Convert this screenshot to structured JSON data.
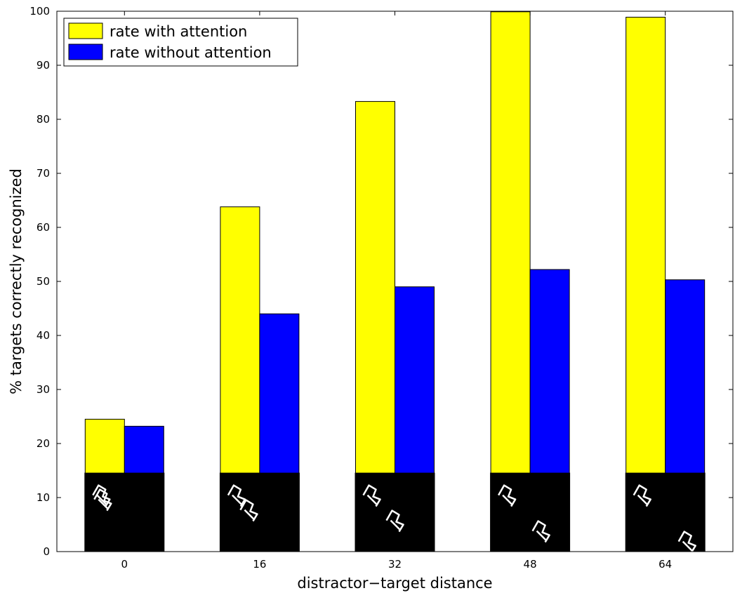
{
  "chart_data": {
    "type": "bar",
    "categories": [
      "0",
      "16",
      "32",
      "48",
      "64"
    ],
    "series": [
      {
        "name": "rate with attention",
        "color": "#ffff00",
        "values": [
          24.5,
          63.8,
          83.3,
          99.9,
          98.9
        ]
      },
      {
        "name": "rate without attention",
        "color": "#0000ff",
        "values": [
          23.2,
          44.0,
          49.0,
          52.2,
          50.3
        ]
      }
    ],
    "xlabel": "distractor−target distance",
    "ylabel": "% targets correctly recognized",
    "ylim": [
      0,
      100
    ],
    "yticks": [
      0,
      10,
      20,
      30,
      40,
      50,
      60,
      70,
      80,
      90,
      100
    ],
    "grid": false,
    "legend_position": "top-left",
    "inset_images": {
      "description_color": "#000000",
      "stroke_color": "#ffffff",
      "top_value": 14.6
    }
  }
}
